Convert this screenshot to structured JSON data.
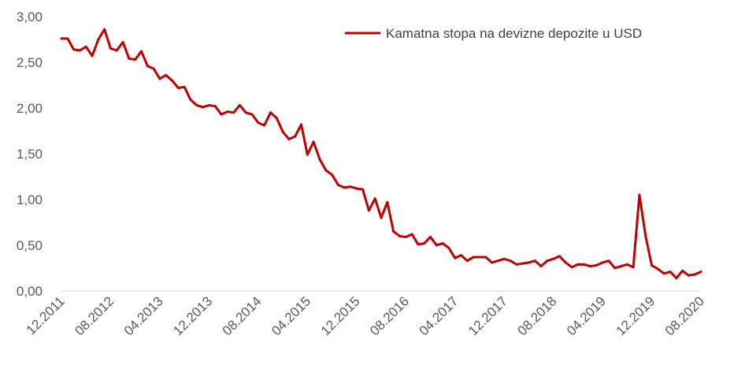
{
  "chart_data": {
    "type": "line",
    "title": "",
    "xlabel": "",
    "ylabel": "",
    "ylim": [
      0,
      3
    ],
    "y_ticks": [
      "0,00",
      "0,50",
      "1,00",
      "1,50",
      "2,00",
      "2,50",
      "3,00"
    ],
    "y_tick_values": [
      0,
      0.5,
      1.0,
      1.5,
      2.0,
      2.5,
      3.0
    ],
    "x_tick_labels": [
      "12.2011",
      "08.2012",
      "04.2013",
      "12.2013",
      "08.2014",
      "04.2015",
      "12.2015",
      "08.2016",
      "04.2017",
      "12.2017",
      "08.2018",
      "04.2019",
      "12.2019",
      "08.2020"
    ],
    "grid": false,
    "legend_position": "top-right",
    "series": [
      {
        "name": "Kamatna stopa na devizne depozite u USD",
        "color": "#c00000",
        "x": [
          "12.2011",
          "01.2012",
          "02.2012",
          "03.2012",
          "04.2012",
          "05.2012",
          "06.2012",
          "07.2012",
          "08.2012",
          "09.2012",
          "10.2012",
          "11.2012",
          "12.2012",
          "01.2013",
          "02.2013",
          "03.2013",
          "04.2013",
          "05.2013",
          "06.2013",
          "07.2013",
          "08.2013",
          "09.2013",
          "10.2013",
          "11.2013",
          "12.2013",
          "01.2014",
          "02.2014",
          "03.2014",
          "04.2014",
          "05.2014",
          "06.2014",
          "07.2014",
          "08.2014",
          "09.2014",
          "10.2014",
          "11.2014",
          "12.2014",
          "01.2015",
          "02.2015",
          "03.2015",
          "04.2015",
          "05.2015",
          "06.2015",
          "07.2015",
          "08.2015",
          "09.2015",
          "10.2015",
          "11.2015",
          "12.2015",
          "01.2016",
          "02.2016",
          "03.2016",
          "04.2016",
          "05.2016",
          "06.2016",
          "07.2016",
          "08.2016",
          "09.2016",
          "10.2016",
          "11.2016",
          "12.2016",
          "01.2017",
          "02.2017",
          "03.2017",
          "04.2017",
          "05.2017",
          "06.2017",
          "07.2017",
          "08.2017",
          "09.2017",
          "10.2017",
          "11.2017",
          "12.2017",
          "01.2018",
          "02.2018",
          "03.2018",
          "04.2018",
          "05.2018",
          "06.2018",
          "07.2018",
          "08.2018",
          "09.2018",
          "10.2018",
          "11.2018",
          "12.2018",
          "01.2019",
          "02.2019",
          "03.2019",
          "04.2019",
          "05.2019",
          "06.2019",
          "07.2019",
          "08.2019",
          "09.2019",
          "10.2019",
          "11.2019",
          "12.2019",
          "01.2020",
          "02.2020",
          "03.2020",
          "04.2020",
          "05.2020",
          "06.2020",
          "07.2020",
          "08.2020"
        ],
        "values": [
          2.76,
          2.76,
          2.64,
          2.63,
          2.67,
          2.57,
          2.75,
          2.86,
          2.65,
          2.63,
          2.72,
          2.54,
          2.53,
          2.62,
          2.46,
          2.43,
          2.32,
          2.36,
          2.3,
          2.22,
          2.23,
          2.09,
          2.03,
          2.01,
          2.03,
          2.02,
          1.93,
          1.96,
          1.95,
          2.03,
          1.95,
          1.93,
          1.84,
          1.81,
          1.95,
          1.89,
          1.74,
          1.66,
          1.69,
          1.82,
          1.49,
          1.63,
          1.44,
          1.32,
          1.27,
          1.16,
          1.13,
          1.14,
          1.12,
          1.11,
          0.88,
          1.01,
          0.8,
          0.97,
          0.65,
          0.6,
          0.59,
          0.62,
          0.51,
          0.52,
          0.59,
          0.5,
          0.52,
          0.47,
          0.36,
          0.39,
          0.33,
          0.37,
          0.37,
          0.37,
          0.31,
          0.33,
          0.35,
          0.33,
          0.29,
          0.3,
          0.31,
          0.33,
          0.27,
          0.33,
          0.35,
          0.38,
          0.31,
          0.26,
          0.29,
          0.29,
          0.27,
          0.28,
          0.31,
          0.33,
          0.25,
          0.27,
          0.29,
          0.26,
          1.05,
          0.6,
          0.28,
          0.24,
          0.19,
          0.21,
          0.14,
          0.22,
          0.17,
          0.18,
          0.21
        ]
      }
    ]
  }
}
